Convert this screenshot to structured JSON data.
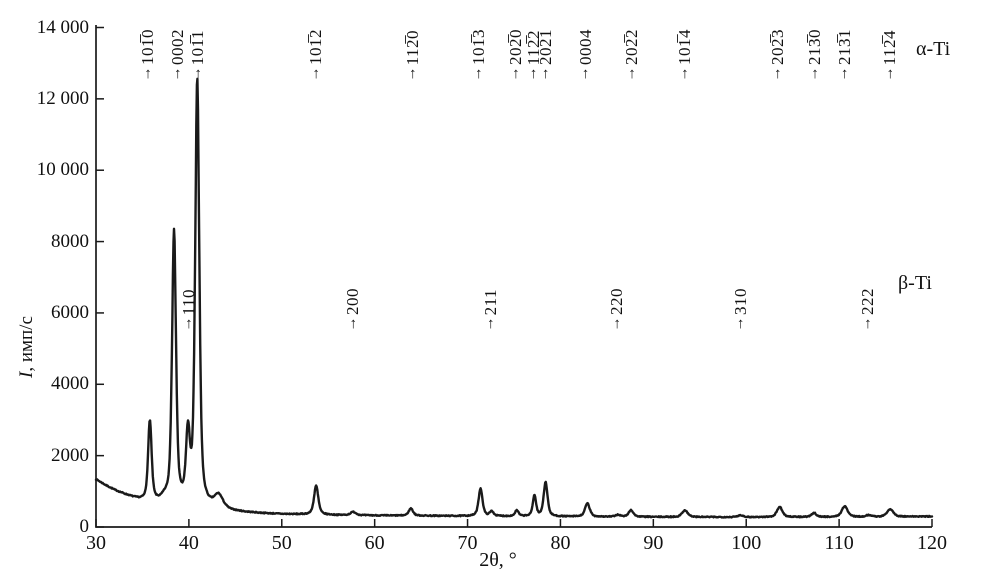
{
  "figure": {
    "background": "#ffffff",
    "ink": "#1a1a1a"
  },
  "chart_data": {
    "type": "line",
    "kind": "xrd-diffraction-pattern",
    "title": "",
    "xlabel": "2θ, °",
    "ylabel": "I, имп/с",
    "ylabel_italic": "I",
    "ylabel_rest": ", имп/с",
    "xlim": [
      30,
      120
    ],
    "ylim": [
      0,
      14000
    ],
    "grid": false,
    "legend_position": "none",
    "x_ticks": [
      {
        "value": 30,
        "label": "30"
      },
      {
        "value": 40,
        "label": "40"
      },
      {
        "value": 50,
        "label": "50"
      },
      {
        "value": 60,
        "label": "60"
      },
      {
        "value": 70,
        "label": "70"
      },
      {
        "value": 80,
        "label": "80"
      },
      {
        "value": 90,
        "label": "90"
      },
      {
        "value": 100,
        "label": "100"
      },
      {
        "value": 110,
        "label": "110"
      },
      {
        "value": 120,
        "label": "120"
      }
    ],
    "y_ticks": [
      {
        "value": 0,
        "label": "0"
      },
      {
        "value": 2000,
        "label": "2000"
      },
      {
        "value": 4000,
        "label": "4000"
      },
      {
        "value": 6000,
        "label": "6000"
      },
      {
        "value": 8000,
        "label": "8000"
      },
      {
        "value": 10000,
        "label": "10 000"
      },
      {
        "value": 12000,
        "label": "12 000"
      },
      {
        "value": 14000,
        "label": "14 000"
      }
    ],
    "alpha_label": "α-Ti",
    "beta_label": "β-Ti",
    "alpha_annotations": [
      {
        "two_theta": 35.6,
        "hkl": "101̅0"
      },
      {
        "two_theta": 38.8,
        "hkl": "0002"
      },
      {
        "two_theta": 41.0,
        "hkl": "101̅1"
      },
      {
        "two_theta": 53.7,
        "hkl": "101̅2"
      },
      {
        "two_theta": 64.1,
        "hkl": "112̅0"
      },
      {
        "two_theta": 71.2,
        "hkl": "101̅3"
      },
      {
        "two_theta": 75.2,
        "hkl": "202̅0"
      },
      {
        "two_theta": 77.1,
        "hkl": "112̅2"
      },
      {
        "two_theta": 78.4,
        "hkl": "202̅1"
      },
      {
        "two_theta": 82.7,
        "hkl": "0004"
      },
      {
        "two_theta": 87.7,
        "hkl": "202̅2"
      },
      {
        "two_theta": 93.4,
        "hkl": "101̅4"
      },
      {
        "two_theta": 103.4,
        "hkl": "202̅3"
      },
      {
        "two_theta": 107.4,
        "hkl": "213̅0"
      },
      {
        "two_theta": 110.6,
        "hkl": "213̅1"
      },
      {
        "two_theta": 115.5,
        "hkl": "112̅4"
      }
    ],
    "beta_annotations": [
      {
        "two_theta": 40.0,
        "hkl": "110"
      },
      {
        "two_theta": 57.7,
        "hkl": "200"
      },
      {
        "two_theta": 72.5,
        "hkl": "211"
      },
      {
        "two_theta": 86.1,
        "hkl": "220"
      },
      {
        "two_theta": 99.4,
        "hkl": "310"
      },
      {
        "two_theta": 113.1,
        "hkl": "222"
      }
    ],
    "peaks": [
      {
        "phase": "alpha-Ti",
        "hkl": "101̅0",
        "two_theta": 35.8,
        "intensity": 2950,
        "width": 0.45
      },
      {
        "phase": "alpha-Ti",
        "hkl": "0002",
        "two_theta": 38.4,
        "intensity": 8250,
        "width": 0.5
      },
      {
        "phase": "alpha-Ti",
        "hkl": "101̅1",
        "two_theta": 40.9,
        "intensity": 12500,
        "width": 0.52
      },
      {
        "phase": "alpha-Ti",
        "hkl": "101̅2",
        "two_theta": 53.7,
        "intensity": 1150,
        "width": 0.55
      },
      {
        "phase": "alpha-Ti",
        "hkl": "112̅0",
        "two_theta": 63.9,
        "intensity": 520,
        "width": 0.55
      },
      {
        "phase": "alpha-Ti",
        "hkl": "101̅3",
        "two_theta": 71.4,
        "intensity": 1080,
        "width": 0.5
      },
      {
        "phase": "alpha-Ti",
        "hkl": "202̅0",
        "two_theta": 75.3,
        "intensity": 460,
        "width": 0.45
      },
      {
        "phase": "alpha-Ti",
        "hkl": "112̅2",
        "two_theta": 77.2,
        "intensity": 880,
        "width": 0.42
      },
      {
        "phase": "alpha-Ti",
        "hkl": "202̅1",
        "two_theta": 78.4,
        "intensity": 1250,
        "width": 0.5
      },
      {
        "phase": "alpha-Ti",
        "hkl": "0004",
        "two_theta": 82.9,
        "intensity": 660,
        "width": 0.6
      },
      {
        "phase": "alpha-Ti",
        "hkl": "202̅2",
        "two_theta": 87.6,
        "intensity": 470,
        "width": 0.6
      },
      {
        "phase": "alpha-Ti",
        "hkl": "101̅4",
        "two_theta": 93.4,
        "intensity": 470,
        "width": 0.7
      },
      {
        "phase": "alpha-Ti",
        "hkl": "202̅3",
        "two_theta": 103.6,
        "intensity": 560,
        "width": 0.7
      },
      {
        "phase": "alpha-Ti",
        "hkl": "213̅0",
        "two_theta": 107.3,
        "intensity": 390,
        "width": 0.6
      },
      {
        "phase": "alpha-Ti",
        "hkl": "213̅1",
        "two_theta": 110.6,
        "intensity": 580,
        "width": 0.75
      },
      {
        "phase": "alpha-Ti",
        "hkl": "112̅4",
        "two_theta": 115.5,
        "intensity": 500,
        "width": 0.8
      },
      {
        "phase": "beta-Ti",
        "hkl": "110",
        "two_theta": 39.9,
        "intensity": 2450,
        "width": 0.5
      },
      {
        "phase": "beta-Ti",
        "hkl": "200",
        "two_theta": 57.7,
        "intensity": 420,
        "width": 0.7
      },
      {
        "phase": "beta-Ti",
        "hkl": "211",
        "two_theta": 72.6,
        "intensity": 430,
        "width": 0.5
      },
      {
        "phase": "beta-Ti",
        "hkl": "220",
        "two_theta": 86.2,
        "intensity": 340,
        "width": 0.6
      },
      {
        "phase": "beta-Ti",
        "hkl": "310",
        "two_theta": 99.4,
        "intensity": 330,
        "width": 0.7
      },
      {
        "phase": "beta-Ti",
        "hkl": "222",
        "two_theta": 113.2,
        "intensity": 330,
        "width": 0.7
      },
      {
        "phase": "",
        "hkl": "",
        "two_theta": 37.4,
        "intensity": 760,
        "width": 0.8
      },
      {
        "phase": "",
        "hkl": "",
        "two_theta": 43.2,
        "intensity": 850,
        "width": 1.1
      }
    ],
    "baseline": [
      [
        30,
        1330
      ],
      [
        31,
        1170
      ],
      [
        32,
        1030
      ],
      [
        33,
        920
      ],
      [
        34,
        820
      ],
      [
        34.7,
        760
      ],
      [
        35.3,
        725
      ],
      [
        36.3,
        690
      ],
      [
        37.5,
        655
      ],
      [
        38.5,
        630
      ],
      [
        39.5,
        600
      ],
      [
        40.5,
        575
      ],
      [
        41.5,
        550
      ],
      [
        42.5,
        515
      ],
      [
        43.5,
        485
      ],
      [
        44.5,
        445
      ],
      [
        46,
        410
      ],
      [
        48,
        380
      ],
      [
        50,
        360
      ],
      [
        53,
        345
      ],
      [
        56,
        332
      ],
      [
        60,
        322
      ],
      [
        65,
        315
      ],
      [
        70,
        306
      ],
      [
        75,
        300
      ],
      [
        80,
        292
      ],
      [
        85,
        286
      ],
      [
        90,
        282
      ],
      [
        95,
        278
      ],
      [
        100,
        276
      ],
      [
        105,
        278
      ],
      [
        110,
        280
      ],
      [
        115,
        284
      ],
      [
        120,
        296
      ]
    ],
    "noise_amplitude": 14
  }
}
